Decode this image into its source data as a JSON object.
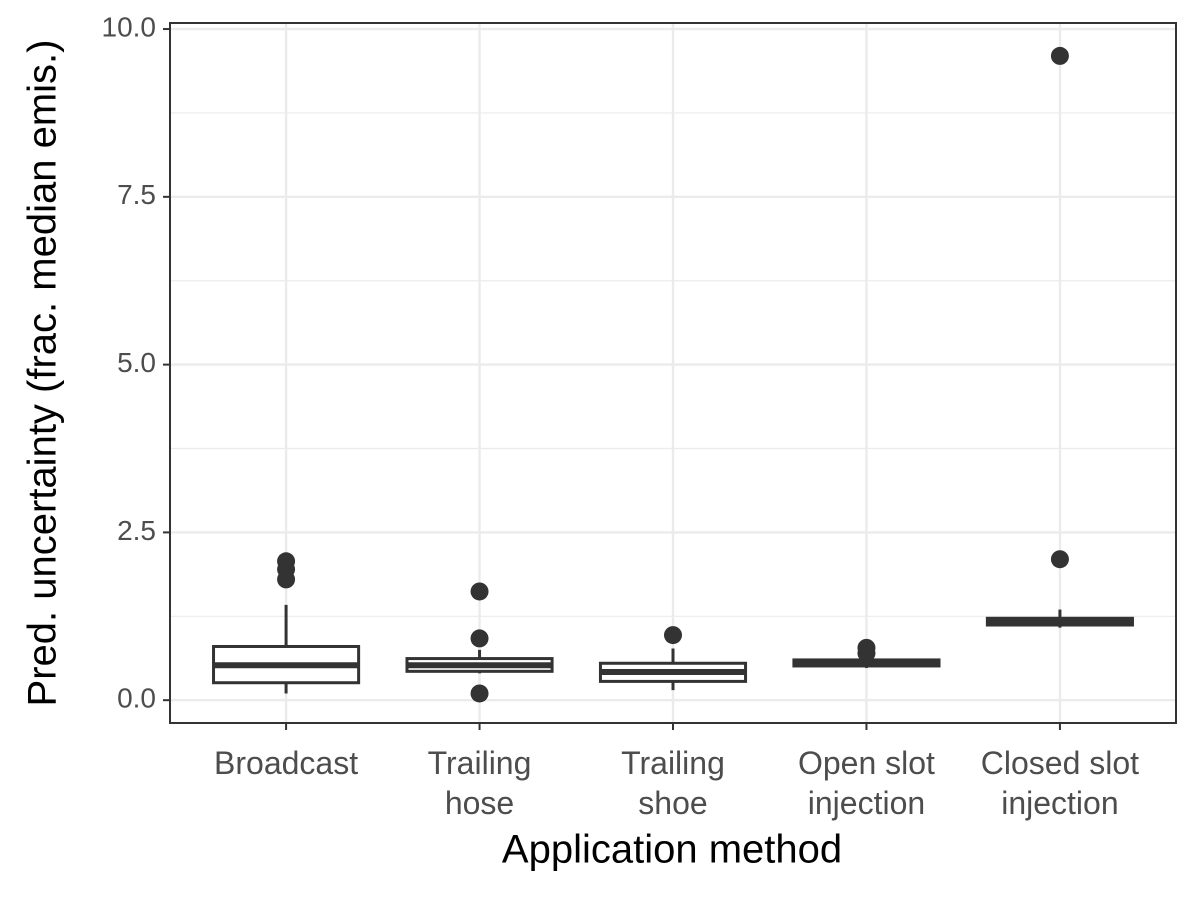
{
  "chart_data": {
    "type": "box",
    "x_label": "Application method",
    "y_label": "Pred. uncertainty (frac. median emis.)",
    "categories": [
      "Broadcast",
      "Trailing\nhose",
      "Trailing\nshoe",
      "Open slot\ninjection",
      "Closed slot\ninjection"
    ],
    "boxes": [
      {
        "min": 0.1,
        "q1": 0.26,
        "median": 0.52,
        "q3": 0.8,
        "max": 1.42,
        "outliers": [
          1.8,
          1.95,
          2.07
        ]
      },
      {
        "min": 0.4,
        "q1": 0.43,
        "median": 0.52,
        "q3": 0.62,
        "max": 0.75,
        "outliers": [
          0.1,
          0.92,
          1.62
        ]
      },
      {
        "min": 0.15,
        "q1": 0.28,
        "median": 0.42,
        "q3": 0.55,
        "max": 0.77,
        "outliers": [
          0.97
        ]
      },
      {
        "min": 0.48,
        "q1": 0.51,
        "median": 0.55,
        "q3": 0.6,
        "max": 0.65,
        "outliers": [
          0.7,
          0.78
        ]
      },
      {
        "min": 1.08,
        "q1": 1.12,
        "median": 1.17,
        "q3": 1.22,
        "max": 1.35,
        "outliers": [
          2.1,
          9.6
        ]
      }
    ],
    "color": "#333333",
    "ylim": [
      -0.34,
      10.09
    ],
    "yticks": [
      {
        "value": 0,
        "label": "0.0"
      },
      {
        "value": 2.5,
        "label": "2.5"
      },
      {
        "value": 5,
        "label": "5.0"
      },
      {
        "value": 7.5,
        "label": "7.5"
      },
      {
        "value": 10,
        "label": "10.0"
      }
    ],
    "grid": true
  }
}
